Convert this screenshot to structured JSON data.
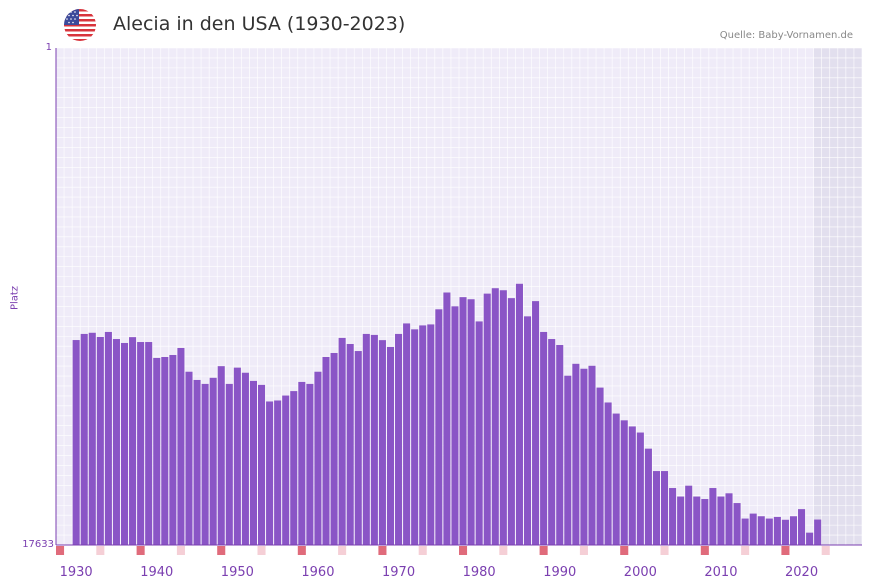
{
  "header": {
    "title": "Alecia in den USA (1930-2023)",
    "source": "Quelle: Baby-Vornamen.de",
    "flag_icon": "us-flag-icon"
  },
  "colors": {
    "bar": "#8a55c6",
    "axis": "#7b3fb0",
    "grid_bg": "#efebf8",
    "grid_line": "#ffffff",
    "future_bg": "#e2dfee",
    "decade_marker": "#e06b7b",
    "minor_marker": "#f5cfd6"
  },
  "chart_data": {
    "type": "bar",
    "title": "Alecia in den USA (1930-2023)",
    "ylabel": "Platz",
    "xlabel": "",
    "y_tick_labels": [
      "1",
      "17633"
    ],
    "ylim": [
      1,
      17633
    ],
    "y_reversed": true,
    "x_tick_labels": [
      "1930",
      "1940",
      "1950",
      "1960",
      "1970",
      "1980",
      "1990",
      "2000",
      "2010",
      "2020"
    ],
    "xlim": [
      1928,
      2028
    ],
    "shaded_future_from": 2022,
    "years": [
      1930,
      1931,
      1932,
      1933,
      1934,
      1935,
      1936,
      1937,
      1938,
      1939,
      1940,
      1941,
      1942,
      1943,
      1944,
      1945,
      1946,
      1947,
      1948,
      1949,
      1950,
      1951,
      1952,
      1953,
      1954,
      1955,
      1956,
      1957,
      1958,
      1959,
      1960,
      1961,
      1962,
      1963,
      1964,
      1965,
      1966,
      1967,
      1968,
      1969,
      1970,
      1971,
      1972,
      1973,
      1974,
      1975,
      1976,
      1977,
      1978,
      1979,
      1980,
      1981,
      1982,
      1983,
      1984,
      1985,
      1986,
      1987,
      1988,
      1989,
      1990,
      1991,
      1992,
      1993,
      1994,
      1995,
      1996,
      1997,
      1998,
      1999,
      2000,
      2001,
      2002,
      2003,
      2004,
      2005,
      2006,
      2007,
      2008,
      2009,
      2010,
      2011,
      2012,
      2013,
      2014,
      2015,
      2016,
      2017,
      2018,
      2019,
      2020,
      2021,
      2022
    ],
    "values": [
      10362,
      10145,
      10104,
      10252,
      10075,
      10326,
      10466,
      10259,
      10432,
      10432,
      10997,
      10962,
      10892,
      10644,
      11486,
      11778,
      11918,
      11702,
      11288,
      11918,
      11341,
      11522,
      11812,
      11953,
      12541,
      12506,
      12331,
      12173,
      11848,
      11918,
      11486,
      10962,
      10821,
      10287,
      10502,
      10752,
      10145,
      10180,
      10365,
      10606,
      10145,
      9772,
      9982,
      9842,
      9807,
      9271,
      8675,
      9165,
      8840,
      8914,
      9701,
      8715,
      8523,
      8595,
      8875,
      8366,
      9520,
      8981,
      10075,
      10326,
      10538,
      11627,
      11205,
      11380,
      11275,
      12049,
      12577,
      12970,
      13210,
      13427,
      13643,
      14215,
      15010,
      15010,
      15612,
      15914,
      15527,
      15914,
      16002,
      15612,
      15914,
      15799,
      16145,
      16695,
      16519,
      16613,
      16695,
      16638,
      16738,
      16613,
      16360,
      17195,
      16730
    ]
  }
}
